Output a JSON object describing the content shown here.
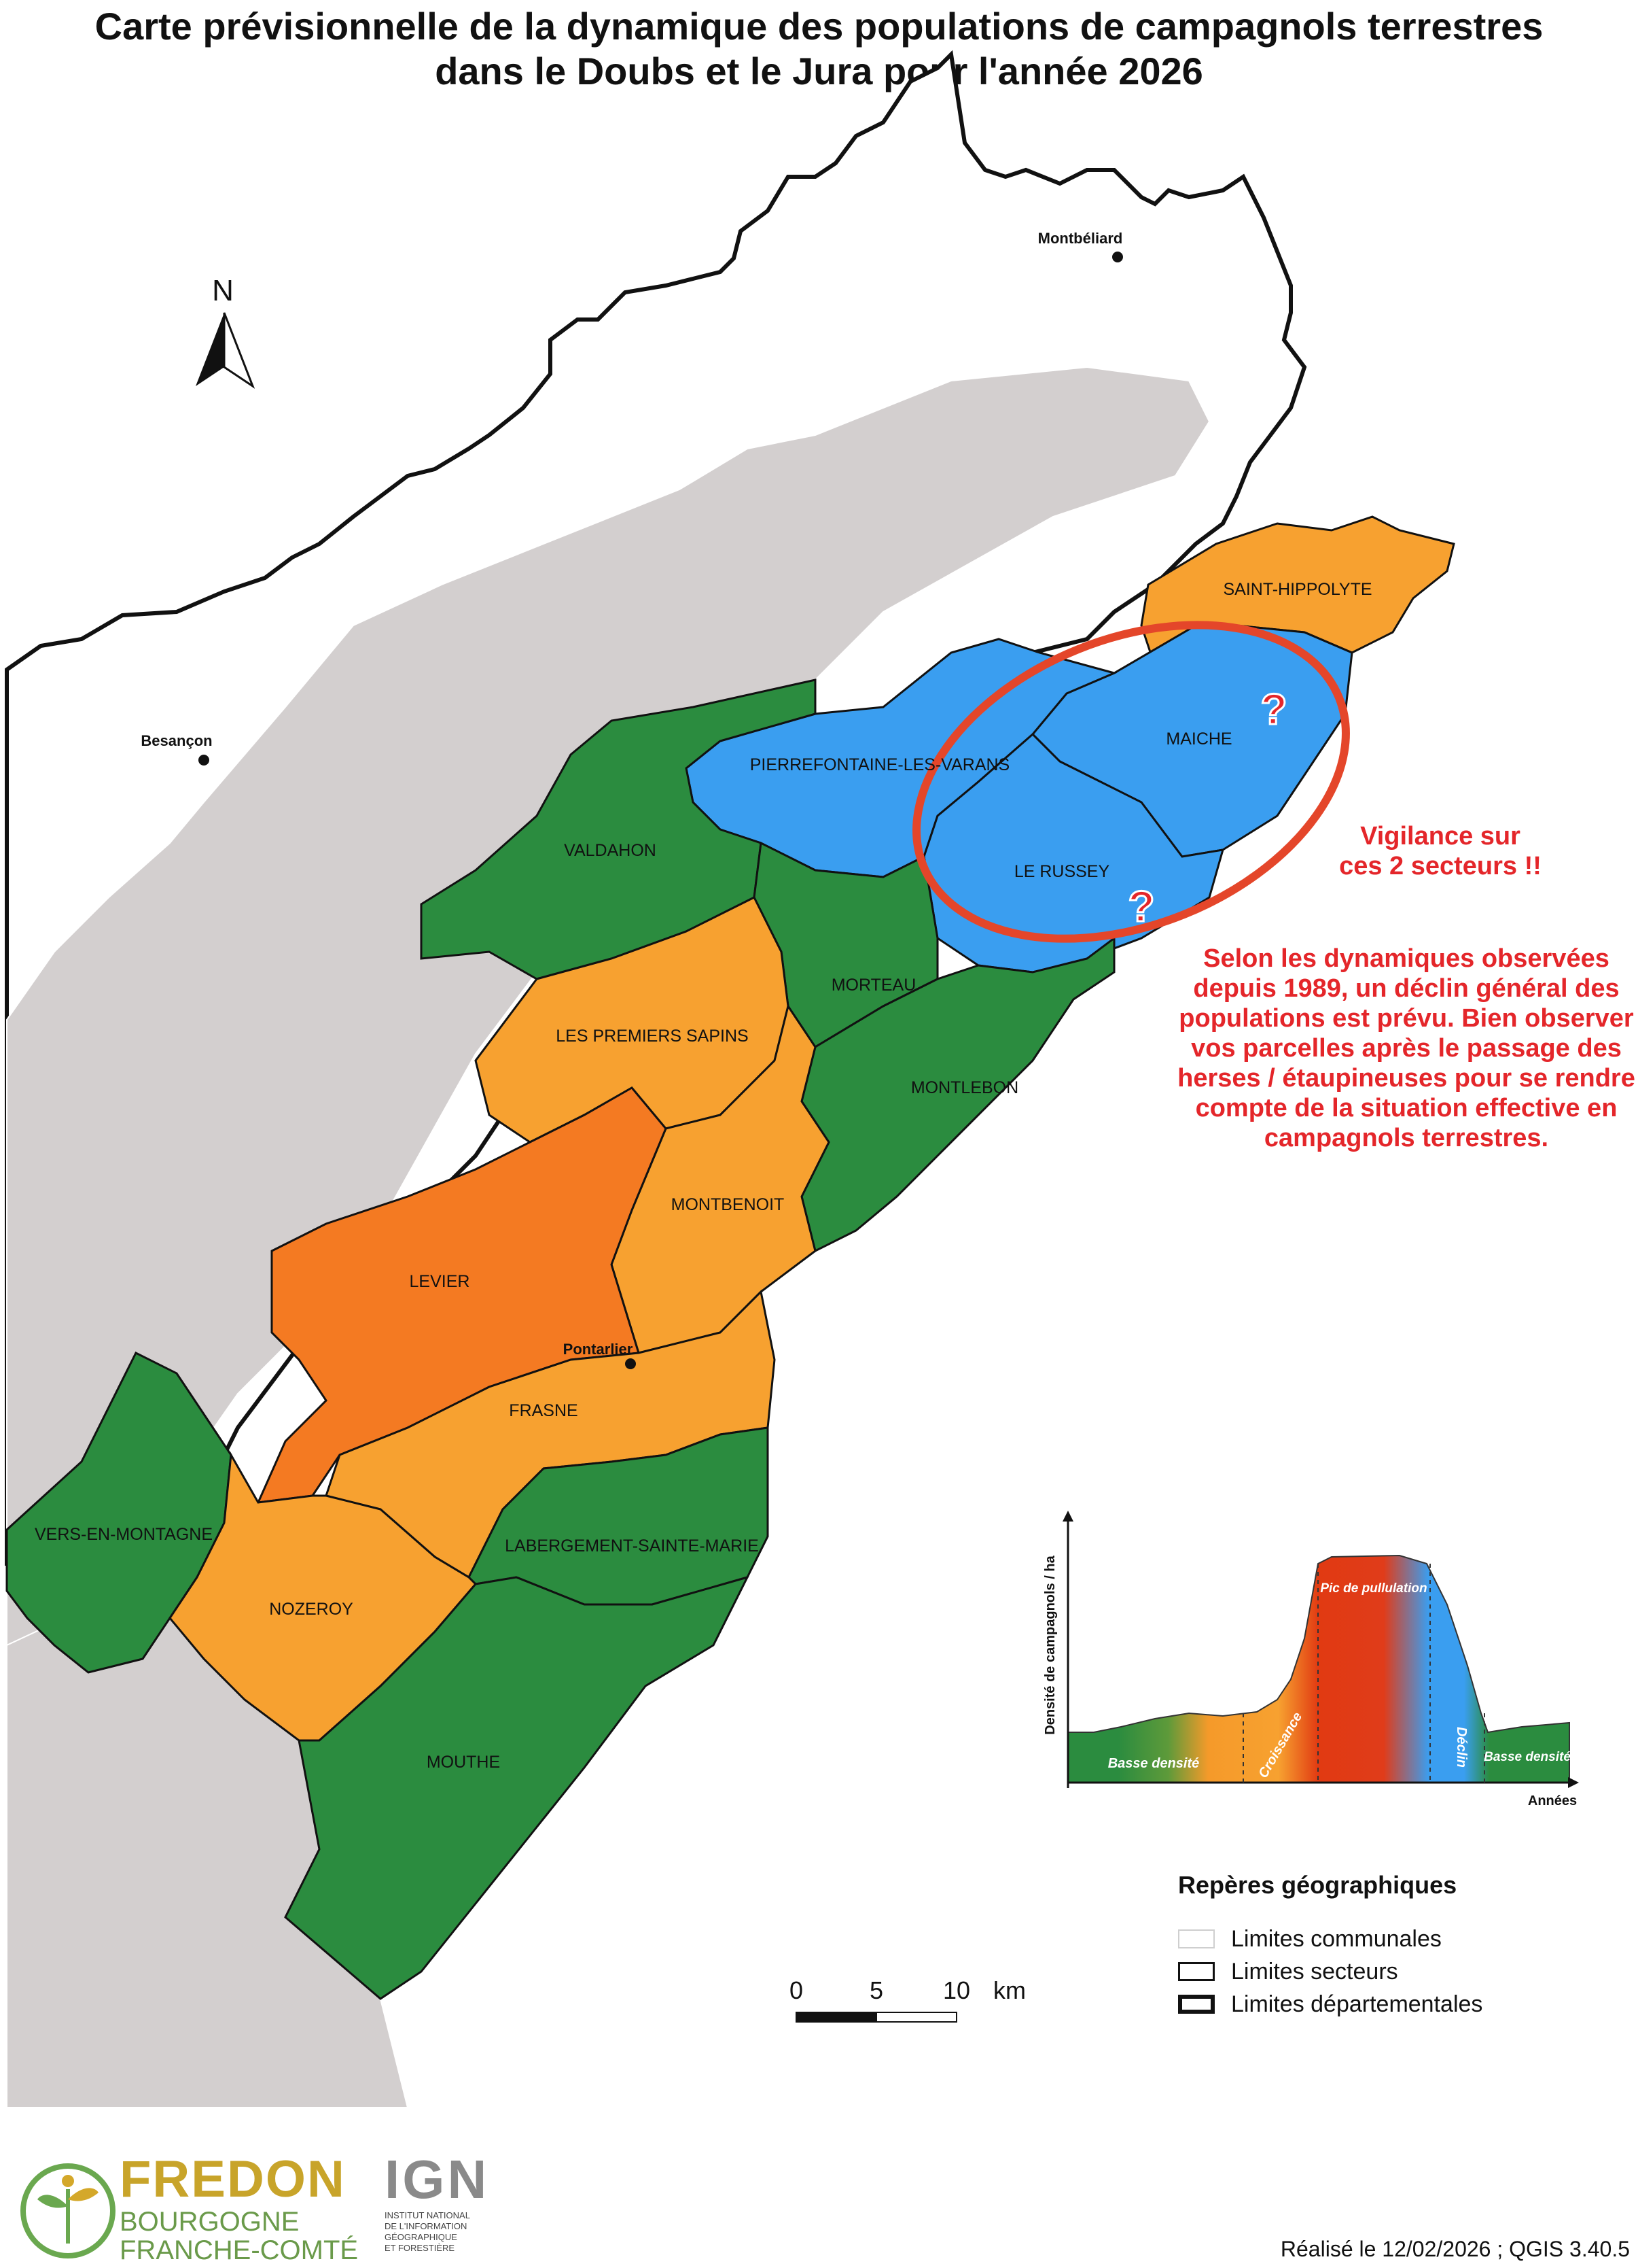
{
  "title": {
    "line1": "Carte prévisionnelle de la dynamique des populations de campagnols terrestres",
    "line2": "dans le Doubs et le Jura pour l'année 2026"
  },
  "compass": {
    "label": "N"
  },
  "cities": {
    "montbeliard": "Montbéliard",
    "besancon": "Besançon",
    "pontarlier": "Pontarlier"
  },
  "sectors": [
    {
      "name": "SAINT-HIPPOLYTE",
      "status": "croissance",
      "color": "#f7a130"
    },
    {
      "name": "MAICHE",
      "status": "declin",
      "color": "#3a9ef0"
    },
    {
      "name": "PIERREFONTAINE-LES-VARANS",
      "status": "declin",
      "color": "#3a9ef0"
    },
    {
      "name": "LE RUSSEY",
      "status": "declin",
      "color": "#3a9ef0"
    },
    {
      "name": "VALDAHON",
      "status": "basse densite",
      "color": "#2b8c3f"
    },
    {
      "name": "MORTEAU",
      "status": "basse densite",
      "color": "#2b8c3f"
    },
    {
      "name": "LES PREMIERS SAPINS",
      "status": "croissance",
      "color": "#f7a130"
    },
    {
      "name": "MONTLEBON",
      "status": "basse densite",
      "color": "#2b8c3f"
    },
    {
      "name": "MONTBENOIT",
      "status": "croissance",
      "color": "#f7a130"
    },
    {
      "name": "LEVIER",
      "status": "pic",
      "color": "#f47a22"
    },
    {
      "name": "FRASNE",
      "status": "croissance",
      "color": "#f7a130"
    },
    {
      "name": "VERS-EN-MONTAGNE",
      "status": "basse densite",
      "color": "#2b8c3f"
    },
    {
      "name": "LABERGEMENT-SAINTE-MARIE",
      "status": "basse densite",
      "color": "#2b8c3f"
    },
    {
      "name": "NOZEROY",
      "status": "croissance",
      "color": "#f7a130"
    },
    {
      "name": "MOUTHE",
      "status": "basse densite",
      "color": "#2b8c3f"
    }
  ],
  "question_marks": [
    "?",
    "?"
  ],
  "warning": {
    "heading": "Vigilance sur ces 2 secteurs !!",
    "body": "Selon les dynamiques observées depuis 1989, un déclin général des populations est prévu. Bien observer vos parcelles après le  passage des herses / étaupineuses pour se rendre compte de la situation effective en campagnols terrestres."
  },
  "cycle_chart": {
    "y_label": "Densité de campagnols / ha",
    "x_label": "Années",
    "phases": [
      "Basse densité",
      "Croissance",
      "Pic de pullulation",
      "Déclin",
      "Basse densité"
    ]
  },
  "scale_bar": {
    "ticks": [
      "0",
      "5",
      "10"
    ],
    "unit": "km"
  },
  "legend": {
    "title": "Repères géographiques",
    "items": [
      "Limites communales",
      "Limites secteurs",
      "Limites départementales"
    ]
  },
  "logos": {
    "fredon_main": "FREDON",
    "fredon_sub1": "BOURGOGNE",
    "fredon_sub2": "FRANCHE-COMTÉ",
    "ign_main": "IGN",
    "ign_sub": [
      "INSTITUT NATIONAL",
      "DE L'INFORMATION",
      "GÉOGRAPHIQUE",
      "ET FORESTIÈRE"
    ]
  },
  "footer": "Réalisé le 12/02/2026 ; QGIS 3.40.5",
  "colors": {
    "basse_densite": "#2b8c3f",
    "croissance": "#f7a130",
    "pic": "#f47a22",
    "declin": "#3a9ef0",
    "neutral": "#d3cfcf",
    "highlight": "#e4262a"
  }
}
